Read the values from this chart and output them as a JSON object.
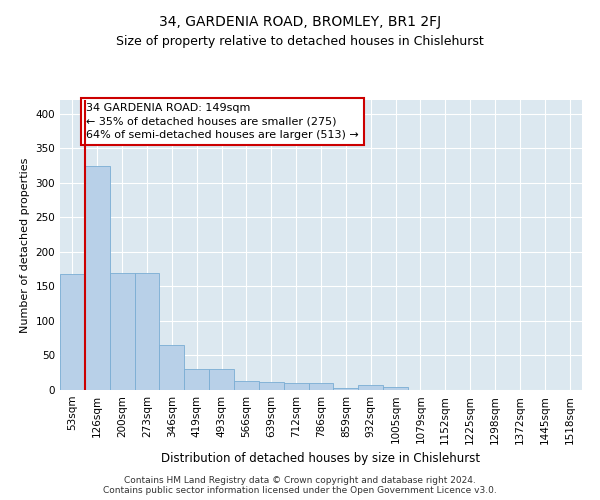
{
  "title": "34, GARDENIA ROAD, BROMLEY, BR1 2FJ",
  "subtitle": "Size of property relative to detached houses in Chislehurst",
  "xlabel": "Distribution of detached houses by size in Chislehurst",
  "ylabel": "Number of detached properties",
  "categories": [
    "53sqm",
    "126sqm",
    "200sqm",
    "273sqm",
    "346sqm",
    "419sqm",
    "493sqm",
    "566sqm",
    "639sqm",
    "712sqm",
    "786sqm",
    "859sqm",
    "932sqm",
    "1005sqm",
    "1079sqm",
    "1152sqm",
    "1225sqm",
    "1298sqm",
    "1372sqm",
    "1445sqm",
    "1518sqm"
  ],
  "values": [
    168,
    325,
    170,
    170,
    65,
    30,
    30,
    13,
    12,
    10,
    10,
    3,
    7,
    5,
    0,
    0,
    0,
    0,
    0,
    0,
    0
  ],
  "bar_color": "#b8d0e8",
  "bar_edge_color": "#7aadd4",
  "property_line_color": "#cc0000",
  "property_line_x": 0.5,
  "annotation_text": "34 GARDENIA ROAD: 149sqm\n← 35% of detached houses are smaller (275)\n64% of semi-detached houses are larger (513) →",
  "annotation_box_facecolor": "#ffffff",
  "annotation_box_edgecolor": "#cc0000",
  "ylim": [
    0,
    420
  ],
  "yticks": [
    0,
    50,
    100,
    150,
    200,
    250,
    300,
    350,
    400
  ],
  "background_color": "#dce8f0",
  "footer_text": "Contains HM Land Registry data © Crown copyright and database right 2024.\nContains public sector information licensed under the Open Government Licence v3.0.",
  "title_fontsize": 10,
  "subtitle_fontsize": 9,
  "xlabel_fontsize": 8.5,
  "ylabel_fontsize": 8,
  "tick_fontsize": 7.5,
  "annotation_fontsize": 8,
  "footer_fontsize": 6.5
}
